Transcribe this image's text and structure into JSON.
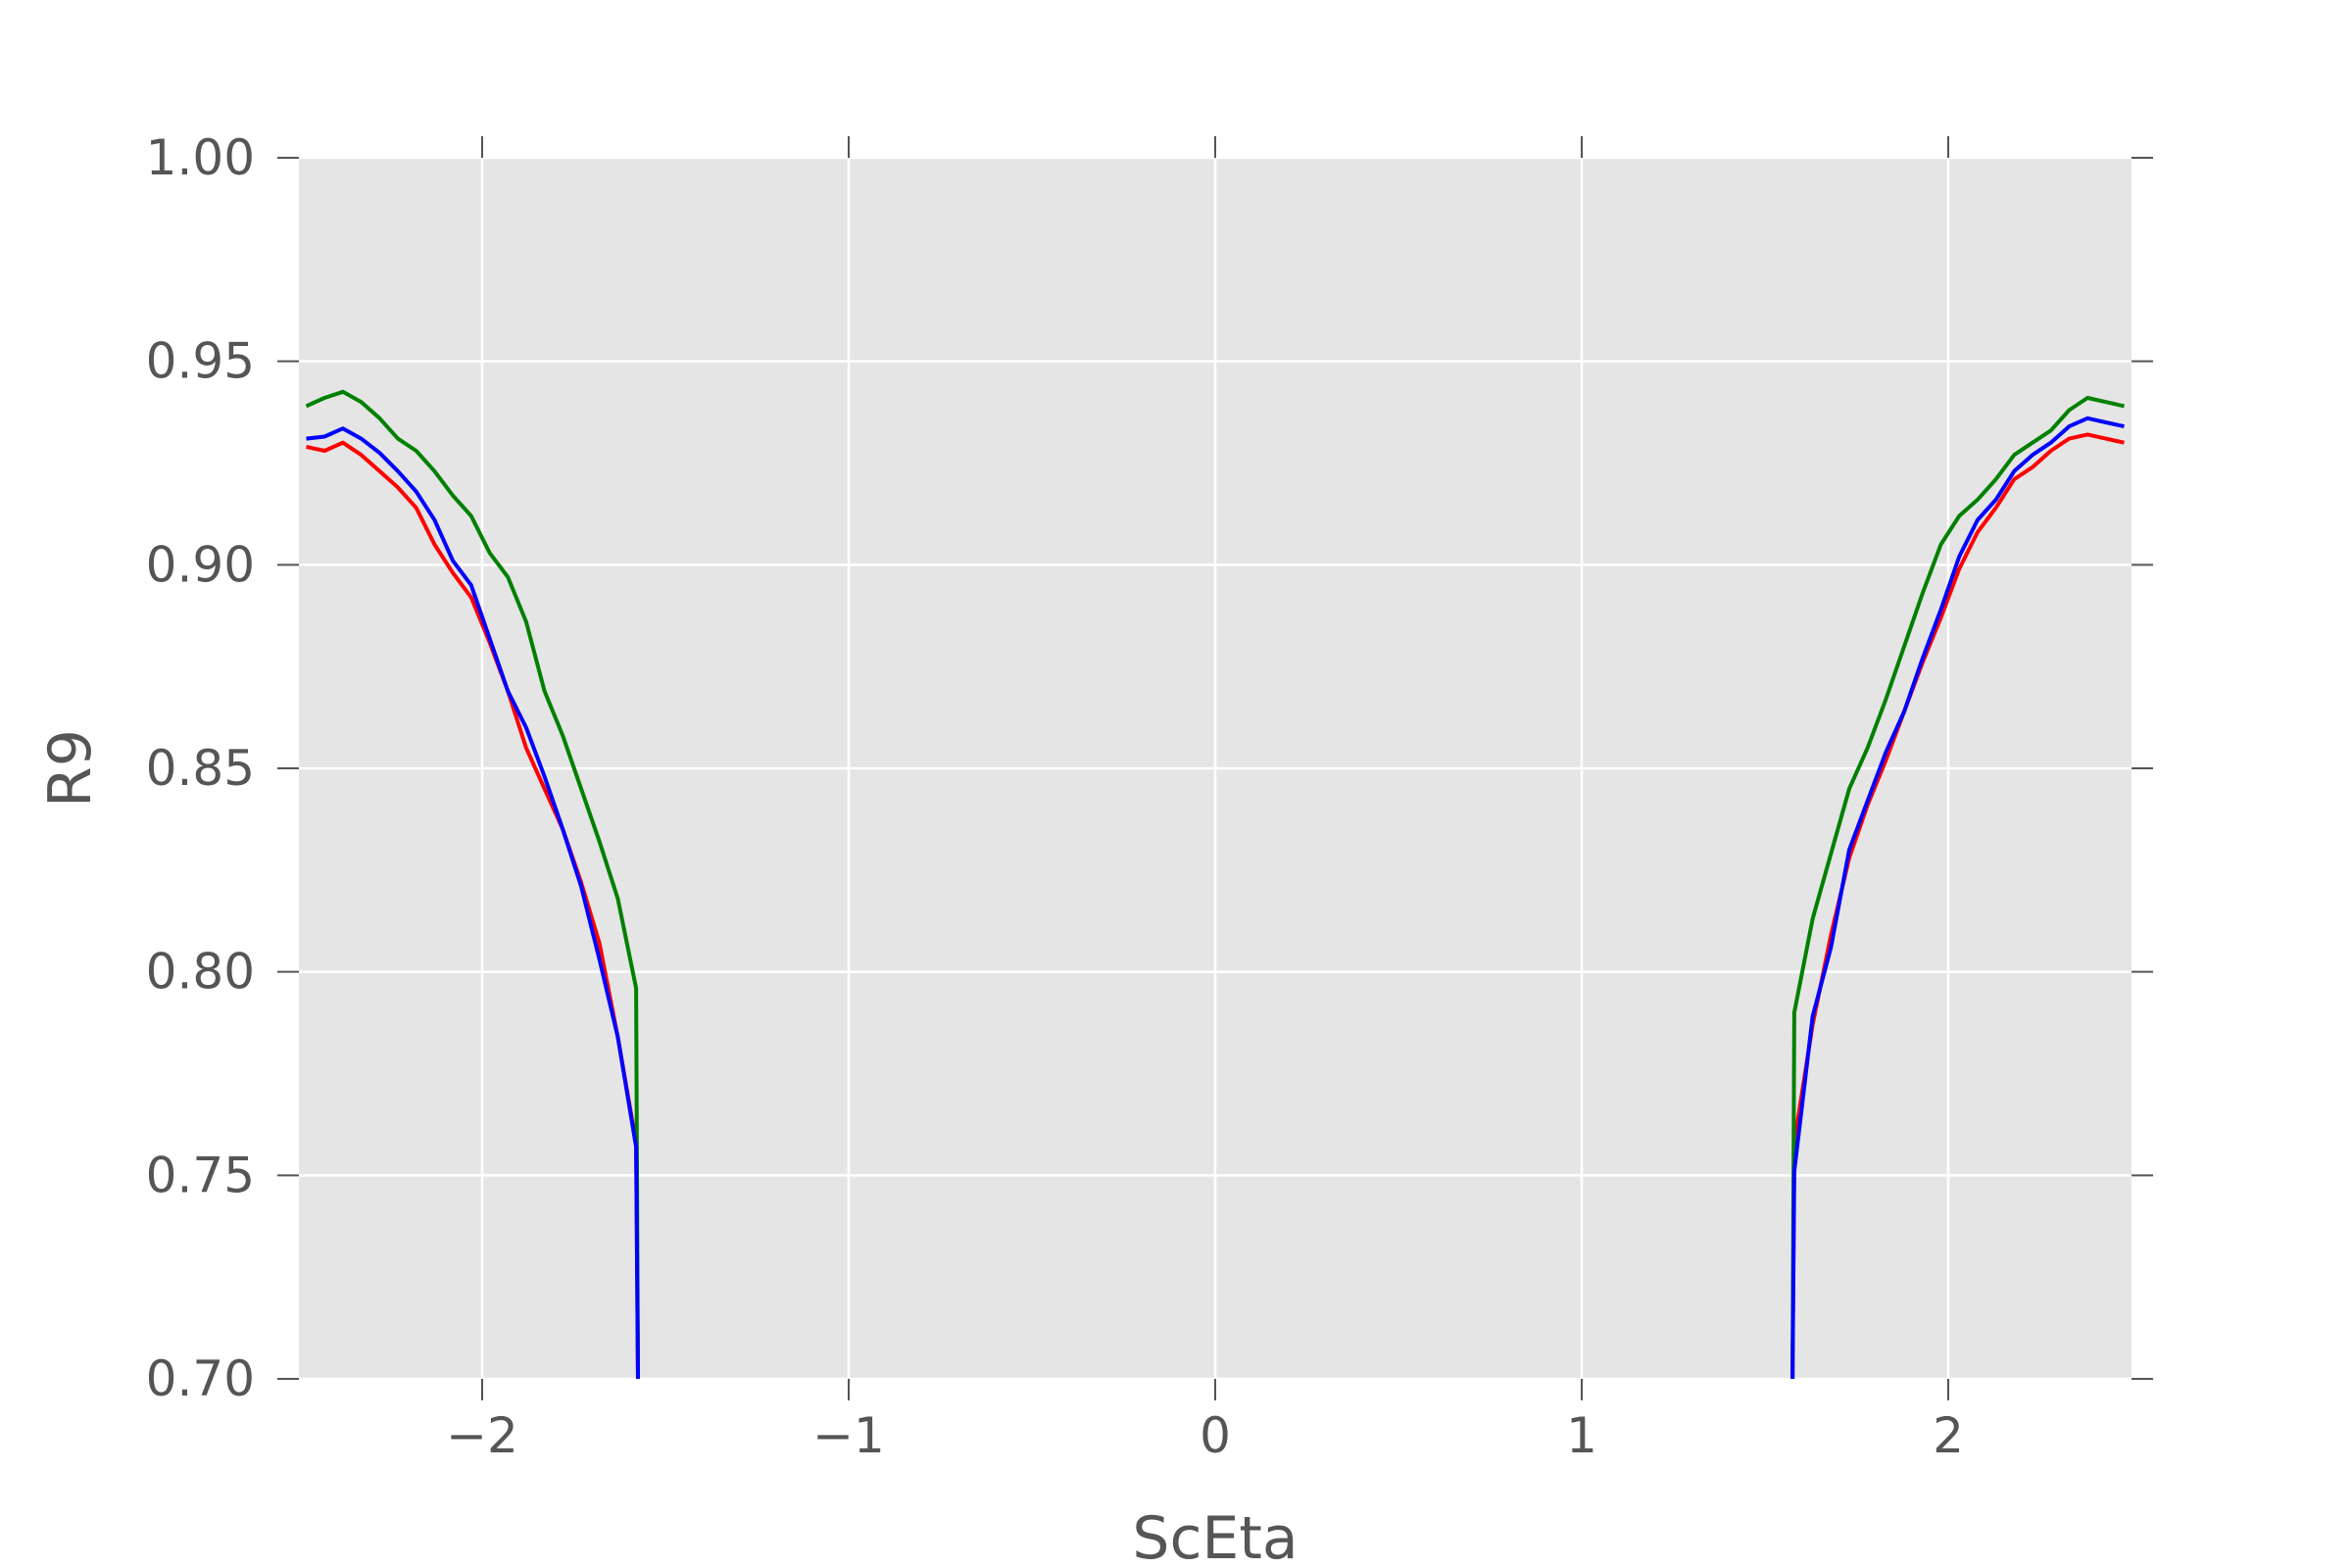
{
  "chart_data": {
    "type": "line",
    "title": "",
    "xlabel": "ScEta",
    "ylabel": "R9",
    "xlim": [
      -2.5,
      2.5
    ],
    "ylim": [
      0.7,
      1.0
    ],
    "xticks": [
      -2,
      -1,
      0,
      1,
      2
    ],
    "xtick_labels": [
      "−2",
      "−1",
      "0",
      "1",
      "2"
    ],
    "yticks": [
      0.7,
      0.75,
      0.8,
      0.85,
      0.9,
      0.95,
      1.0
    ],
    "ytick_labels": [
      "0.70",
      "0.75",
      "0.80",
      "0.85",
      "0.90",
      "0.95",
      "1.00"
    ],
    "grid": true,
    "background": "#e5e5e5",
    "series": [
      {
        "color": "#ff0000",
        "segments": [
          [
            [
              -2.48,
              0.929
            ],
            [
              -2.43,
              0.928
            ],
            [
              -2.38,
              0.93
            ],
            [
              -2.33,
              0.927
            ],
            [
              -2.28,
              0.923
            ],
            [
              -2.23,
              0.919
            ],
            [
              -2.18,
              0.914
            ],
            [
              -2.13,
              0.905
            ],
            [
              -2.08,
              0.898
            ],
            [
              -2.03,
              0.892
            ],
            [
              -1.98,
              0.881
            ],
            [
              -1.93,
              0.869
            ],
            [
              -1.88,
              0.855
            ],
            [
              -1.83,
              0.845
            ],
            [
              -1.78,
              0.835
            ],
            [
              -1.73,
              0.822
            ],
            [
              -1.68,
              0.807
            ],
            [
              -1.63,
              0.784
            ],
            [
              -1.58,
              0.758
            ],
            [
              -1.575,
              0.7
            ]
          ],
          [
            [
              1.575,
              0.7
            ],
            [
              1.58,
              0.758
            ],
            [
              1.63,
              0.787
            ],
            [
              1.68,
              0.809
            ],
            [
              1.73,
              0.828
            ],
            [
              1.78,
              0.841
            ],
            [
              1.83,
              0.852
            ],
            [
              1.88,
              0.864
            ],
            [
              1.93,
              0.876
            ],
            [
              1.98,
              0.887
            ],
            [
              2.03,
              0.899
            ],
            [
              2.08,
              0.908
            ],
            [
              2.13,
              0.914
            ],
            [
              2.18,
              0.921
            ],
            [
              2.23,
              0.924
            ],
            [
              2.28,
              0.928
            ],
            [
              2.33,
              0.931
            ],
            [
              2.38,
              0.932
            ],
            [
              2.43,
              0.931
            ],
            [
              2.48,
              0.93
            ]
          ]
        ]
      },
      {
        "color": "#008000",
        "segments": [
          [
            [
              -2.48,
              0.939
            ],
            [
              -2.43,
              0.941
            ],
            [
              -2.38,
              0.9425
            ],
            [
              -2.33,
              0.94
            ],
            [
              -2.28,
              0.936
            ],
            [
              -2.23,
              0.931
            ],
            [
              -2.18,
              0.928
            ],
            [
              -2.13,
              0.923
            ],
            [
              -2.08,
              0.917
            ],
            [
              -2.03,
              0.912
            ],
            [
              -1.98,
              0.903
            ],
            [
              -1.93,
              0.897
            ],
            [
              -1.88,
              0.886
            ],
            [
              -1.83,
              0.869
            ],
            [
              -1.78,
              0.858
            ],
            [
              -1.73,
              0.845
            ],
            [
              -1.68,
              0.832
            ],
            [
              -1.63,
              0.818
            ],
            [
              -1.58,
              0.796
            ],
            [
              -1.575,
              0.7
            ]
          ],
          [
            [
              1.575,
              0.7
            ],
            [
              1.58,
              0.79
            ],
            [
              1.63,
              0.813
            ],
            [
              1.68,
              0.829
            ],
            [
              1.73,
              0.845
            ],
            [
              1.78,
              0.855
            ],
            [
              1.83,
              0.867
            ],
            [
              1.88,
              0.88
            ],
            [
              1.93,
              0.893
            ],
            [
              1.98,
              0.905
            ],
            [
              2.03,
              0.912
            ],
            [
              2.08,
              0.916
            ],
            [
              2.13,
              0.921
            ],
            [
              2.18,
              0.927
            ],
            [
              2.23,
              0.93
            ],
            [
              2.28,
              0.933
            ],
            [
              2.33,
              0.938
            ],
            [
              2.38,
              0.941
            ],
            [
              2.43,
              0.94
            ],
            [
              2.48,
              0.939
            ]
          ]
        ]
      },
      {
        "color": "#0000ff",
        "segments": [
          [
            [
              -2.48,
              0.931
            ],
            [
              -2.43,
              0.9315
            ],
            [
              -2.38,
              0.9335
            ],
            [
              -2.33,
              0.931
            ],
            [
              -2.28,
              0.9275
            ],
            [
              -2.23,
              0.923
            ],
            [
              -2.18,
              0.918
            ],
            [
              -2.13,
              0.911
            ],
            [
              -2.08,
              0.901
            ],
            [
              -2.03,
              0.895
            ],
            [
              -1.98,
              0.882
            ],
            [
              -1.93,
              0.869
            ],
            [
              -1.88,
              0.86
            ],
            [
              -1.83,
              0.848
            ],
            [
              -1.78,
              0.835
            ],
            [
              -1.73,
              0.821
            ],
            [
              -1.68,
              0.803
            ],
            [
              -1.63,
              0.784
            ],
            [
              -1.58,
              0.757
            ],
            [
              -1.575,
              0.7
            ]
          ],
          [
            [
              1.575,
              0.7
            ],
            [
              1.58,
              0.751
            ],
            [
              1.63,
              0.789
            ],
            [
              1.68,
              0.806
            ],
            [
              1.73,
              0.83
            ],
            [
              1.78,
              0.842
            ],
            [
              1.83,
              0.854
            ],
            [
              1.88,
              0.864
            ],
            [
              1.93,
              0.877
            ],
            [
              1.98,
              0.889
            ],
            [
              2.03,
              0.902
            ],
            [
              2.08,
              0.911
            ],
            [
              2.13,
              0.916
            ],
            [
              2.18,
              0.923
            ],
            [
              2.23,
              0.927
            ],
            [
              2.28,
              0.93
            ],
            [
              2.33,
              0.934
            ],
            [
              2.38,
              0.936
            ],
            [
              2.43,
              0.935
            ],
            [
              2.48,
              0.934
            ]
          ]
        ]
      }
    ]
  }
}
